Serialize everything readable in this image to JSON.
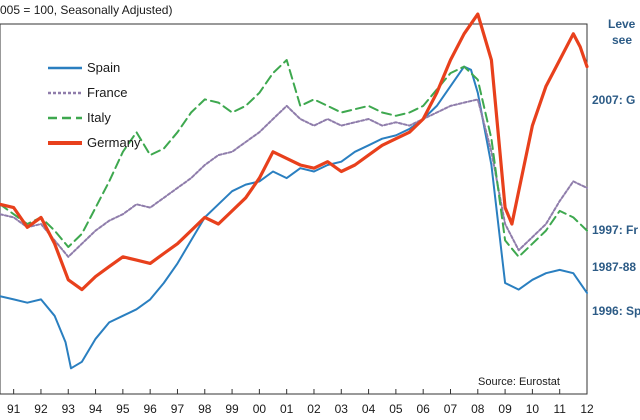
{
  "chart_data": {
    "type": "line",
    "subtitle": "005 = 100, Seasonally Adjusted)",
    "source": "Source: Eurostat",
    "x_tick_labels": [
      "91",
      "92",
      "93",
      "94",
      "95",
      "96",
      "97",
      "98",
      "99",
      "00",
      "01",
      "02",
      "03",
      "04",
      "05",
      "06",
      "07",
      "08",
      "09",
      "10",
      "11",
      "12"
    ],
    "x_domain": [
      1990.5,
      2012.0
    ],
    "y_domain": [
      0,
      100
    ],
    "grid": false,
    "legend_position": "top-left",
    "side_heading": [
      "Leve",
      "see"
    ],
    "side_annotations": [
      {
        "text": "2007: G",
        "series": "Germany"
      },
      {
        "text": "1997: Fr",
        "series": "France"
      },
      {
        "text": "1987-88",
        "series": "Italy"
      },
      {
        "text": "1996: Sp",
        "series": "Spain"
      }
    ],
    "series": [
      {
        "name": "Spain",
        "color": "#2a7fc0",
        "dash": "solid",
        "points": [
          [
            1990.5,
            28
          ],
          [
            1991.0,
            27
          ],
          [
            1991.5,
            26
          ],
          [
            1992.0,
            27
          ],
          [
            1992.5,
            22
          ],
          [
            1992.9,
            14
          ],
          [
            1993.1,
            6
          ],
          [
            1993.5,
            8
          ],
          [
            1994.0,
            15
          ],
          [
            1994.5,
            20
          ],
          [
            1995.0,
            22
          ],
          [
            1995.5,
            24
          ],
          [
            1996.0,
            27
          ],
          [
            1996.5,
            32
          ],
          [
            1997.0,
            38
          ],
          [
            1997.5,
            45
          ],
          [
            1998.0,
            52
          ],
          [
            1998.5,
            56
          ],
          [
            1999.0,
            60
          ],
          [
            1999.5,
            62
          ],
          [
            2000.0,
            63
          ],
          [
            2000.5,
            66
          ],
          [
            2001.0,
            64
          ],
          [
            2001.5,
            67
          ],
          [
            2002.0,
            66
          ],
          [
            2002.5,
            68
          ],
          [
            2003.0,
            69
          ],
          [
            2003.5,
            72
          ],
          [
            2004.0,
            74
          ],
          [
            2004.5,
            76
          ],
          [
            2005.0,
            77
          ],
          [
            2005.5,
            79
          ],
          [
            2006.0,
            82
          ],
          [
            2006.5,
            86
          ],
          [
            2007.0,
            92
          ],
          [
            2007.5,
            98
          ],
          [
            2007.75,
            97
          ],
          [
            2008.0,
            90
          ],
          [
            2008.5,
            68
          ],
          [
            2009.0,
            32
          ],
          [
            2009.5,
            30
          ],
          [
            2010.0,
            33
          ],
          [
            2010.5,
            35
          ],
          [
            2011.0,
            36
          ],
          [
            2011.5,
            35
          ],
          [
            2012.0,
            29
          ]
        ]
      },
      {
        "name": "France",
        "color": "#8f7dab",
        "dash": "dotted",
        "points": [
          [
            1990.5,
            53
          ],
          [
            1991.0,
            52
          ],
          [
            1991.5,
            49
          ],
          [
            1992.0,
            50
          ],
          [
            1992.5,
            45
          ],
          [
            1993.0,
            40
          ],
          [
            1993.5,
            44
          ],
          [
            1994.0,
            48
          ],
          [
            1994.5,
            51
          ],
          [
            1995.0,
            53
          ],
          [
            1995.5,
            56
          ],
          [
            1996.0,
            55
          ],
          [
            1996.5,
            58
          ],
          [
            1997.0,
            61
          ],
          [
            1997.5,
            64
          ],
          [
            1998.0,
            68
          ],
          [
            1998.5,
            71
          ],
          [
            1999.0,
            72
          ],
          [
            1999.5,
            75
          ],
          [
            2000.0,
            78
          ],
          [
            2000.5,
            82
          ],
          [
            2001.0,
            86
          ],
          [
            2001.5,
            82
          ],
          [
            2002.0,
            80
          ],
          [
            2002.5,
            82
          ],
          [
            2003.0,
            80
          ],
          [
            2003.5,
            81
          ],
          [
            2004.0,
            82
          ],
          [
            2004.5,
            80
          ],
          [
            2005.0,
            81
          ],
          [
            2005.5,
            80
          ],
          [
            2006.0,
            82
          ],
          [
            2006.5,
            84
          ],
          [
            2007.0,
            86
          ],
          [
            2007.5,
            87
          ],
          [
            2008.0,
            88
          ],
          [
            2008.5,
            72
          ],
          [
            2009.0,
            50
          ],
          [
            2009.5,
            42
          ],
          [
            2010.0,
            46
          ],
          [
            2010.5,
            50
          ],
          [
            2011.0,
            57
          ],
          [
            2011.5,
            63
          ],
          [
            2012.0,
            61
          ]
        ]
      },
      {
        "name": "Italy",
        "color": "#3ea84f",
        "dash": "dashed",
        "points": [
          [
            1990.5,
            56
          ],
          [
            1991.0,
            53
          ],
          [
            1991.5,
            50
          ],
          [
            1992.0,
            52
          ],
          [
            1992.5,
            48
          ],
          [
            1993.0,
            43
          ],
          [
            1993.5,
            47
          ],
          [
            1994.0,
            55
          ],
          [
            1994.5,
            63
          ],
          [
            1995.0,
            72
          ],
          [
            1995.5,
            78
          ],
          [
            1996.0,
            71
          ],
          [
            1996.5,
            73
          ],
          [
            1997.0,
            78
          ],
          [
            1997.5,
            84
          ],
          [
            1998.0,
            88
          ],
          [
            1998.5,
            87
          ],
          [
            1999.0,
            84
          ],
          [
            1999.5,
            86
          ],
          [
            2000.0,
            90
          ],
          [
            2000.5,
            96
          ],
          [
            2001.0,
            100
          ],
          [
            2001.5,
            86
          ],
          [
            2002.0,
            88
          ],
          [
            2002.5,
            86
          ],
          [
            2003.0,
            84
          ],
          [
            2003.5,
            85
          ],
          [
            2004.0,
            86
          ],
          [
            2004.5,
            84
          ],
          [
            2005.0,
            83
          ],
          [
            2005.5,
            84
          ],
          [
            2006.0,
            86
          ],
          [
            2006.5,
            91
          ],
          [
            2007.0,
            96
          ],
          [
            2007.5,
            98
          ],
          [
            2008.0,
            94
          ],
          [
            2008.5,
            76
          ],
          [
            2009.0,
            45
          ],
          [
            2009.5,
            40
          ],
          [
            2010.0,
            44
          ],
          [
            2010.5,
            48
          ],
          [
            2011.0,
            54
          ],
          [
            2011.5,
            52
          ],
          [
            2012.0,
            48
          ]
        ]
      },
      {
        "name": "Germany",
        "color": "#e8401c",
        "dash": "solid",
        "points": [
          [
            1990.5,
            56
          ],
          [
            1991.0,
            55
          ],
          [
            1991.5,
            49
          ],
          [
            1992.0,
            52
          ],
          [
            1992.5,
            44
          ],
          [
            1993.0,
            33
          ],
          [
            1993.5,
            30
          ],
          [
            1994.0,
            34
          ],
          [
            1994.5,
            37
          ],
          [
            1995.0,
            40
          ],
          [
            1995.5,
            39
          ],
          [
            1996.0,
            38
          ],
          [
            1996.5,
            41
          ],
          [
            1997.0,
            44
          ],
          [
            1997.5,
            48
          ],
          [
            1998.0,
            52
          ],
          [
            1998.5,
            50
          ],
          [
            1999.0,
            54
          ],
          [
            1999.5,
            58
          ],
          [
            2000.0,
            64
          ],
          [
            2000.5,
            72
          ],
          [
            2001.0,
            70
          ],
          [
            2001.5,
            68
          ],
          [
            2002.0,
            67
          ],
          [
            2002.5,
            69
          ],
          [
            2003.0,
            66
          ],
          [
            2003.5,
            68
          ],
          [
            2004.0,
            71
          ],
          [
            2004.5,
            74
          ],
          [
            2005.0,
            76
          ],
          [
            2005.5,
            78
          ],
          [
            2006.0,
            82
          ],
          [
            2006.5,
            90
          ],
          [
            2007.0,
            100
          ],
          [
            2007.5,
            108
          ],
          [
            2008.0,
            114
          ],
          [
            2008.5,
            100
          ],
          [
            2009.0,
            55
          ],
          [
            2009.25,
            50
          ],
          [
            2009.5,
            60
          ],
          [
            2010.0,
            80
          ],
          [
            2010.5,
            92
          ],
          [
            2011.0,
            100
          ],
          [
            2011.5,
            108
          ],
          [
            2011.75,
            104
          ],
          [
            2012.0,
            98
          ]
        ]
      }
    ]
  }
}
